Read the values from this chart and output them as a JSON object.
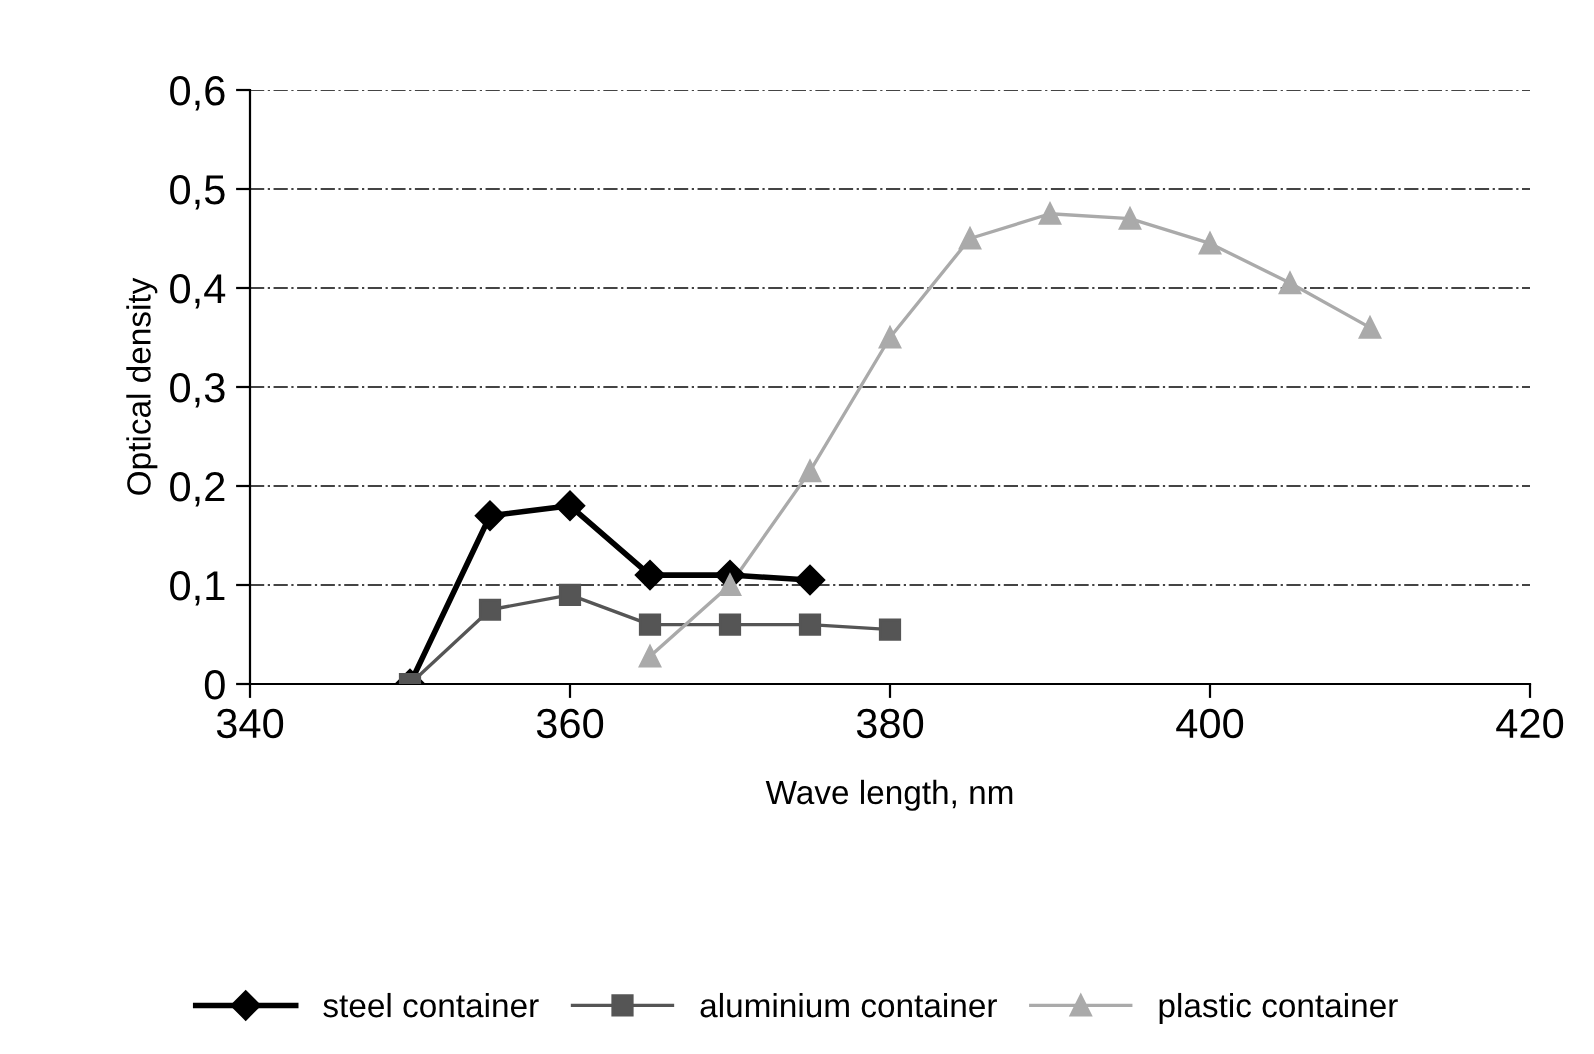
{
  "chart_data": {
    "type": "line",
    "xlabel": "Wave length, nm",
    "ylabel": "Optical density",
    "xlim": [
      340,
      420
    ],
    "xticks": [
      340,
      360,
      380,
      400,
      420
    ],
    "ylim": [
      0,
      0.6
    ],
    "yticks": [
      {
        "value": 0,
        "label": "0"
      },
      {
        "value": 0.1,
        "label": "0,1"
      },
      {
        "value": 0.2,
        "label": "0,2"
      },
      {
        "value": 0.3,
        "label": "0,3"
      },
      {
        "value": 0.4,
        "label": "0,4"
      },
      {
        "value": 0.5,
        "label": "0,5"
      },
      {
        "value": 0.6,
        "label": "0,6"
      }
    ],
    "grid": "y",
    "legend": "bottom",
    "series": [
      {
        "name": "steel container",
        "color": "#000000",
        "marker": "diamond",
        "x": [
          350,
          355,
          360,
          365,
          370,
          375
        ],
        "values": [
          0,
          0.17,
          0.18,
          0.11,
          0.11,
          0.105
        ]
      },
      {
        "name": "aluminium container",
        "color": "#555555",
        "marker": "square",
        "x": [
          350,
          355,
          360,
          365,
          370,
          375,
          380
        ],
        "values": [
          0,
          0.075,
          0.09,
          0.06,
          0.06,
          0.06,
          0.055
        ]
      },
      {
        "name": "plastic container",
        "color": "#aaaaaa",
        "marker": "triangle",
        "x": [
          365,
          370,
          375,
          380,
          385,
          390,
          395,
          400,
          405,
          410
        ],
        "values": [
          0.028,
          0.1,
          0.215,
          0.35,
          0.45,
          0.475,
          0.47,
          0.445,
          0.405,
          0.36
        ]
      }
    ]
  }
}
